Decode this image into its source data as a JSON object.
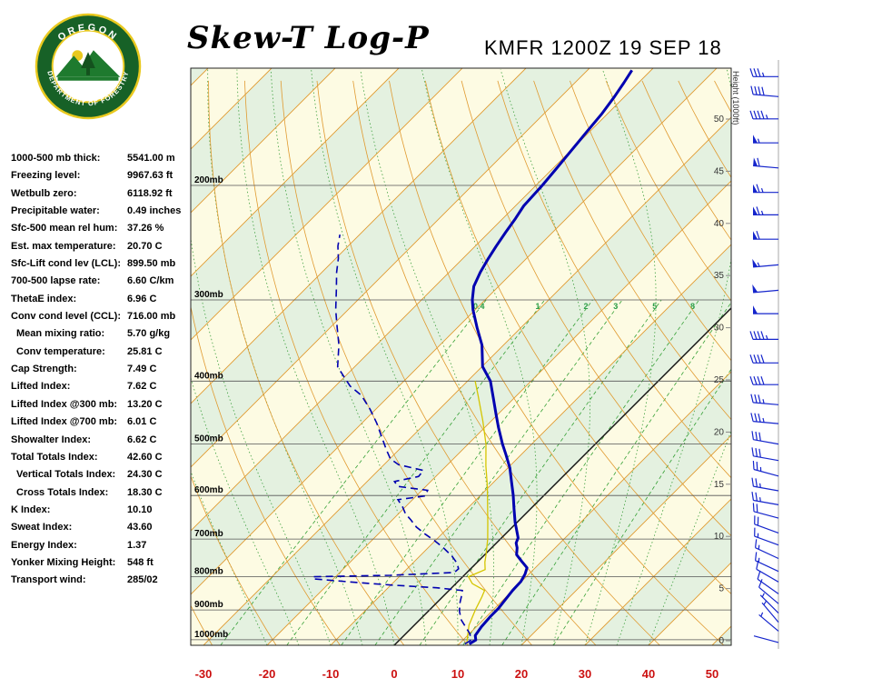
{
  "page": {
    "title": "Skew-T Log-P",
    "station": "KMFR 1200Z 19 SEP 18"
  },
  "logo": {
    "top_text": "OREGON",
    "bottom_text": "DEPARTMENT OF FORESTRY"
  },
  "indices": [
    {
      "label": "1000-500 mb thick:",
      "value": "5541.00 m",
      "indent": false
    },
    {
      "label": "Freezing level:",
      "value": "9967.63 ft",
      "indent": false
    },
    {
      "label": "Wetbulb zero:",
      "value": "6118.92 ft",
      "indent": false
    },
    {
      "label": "Precipitable water:",
      "value": "0.49 inches",
      "indent": false
    },
    {
      "label": "Sfc-500 mean rel hum:",
      "value": "37.26 %",
      "indent": false
    },
    {
      "label": "Est. max temperature:",
      "value": "20.70 C",
      "indent": false
    },
    {
      "label": "Sfc-Lift cond lev (LCL):",
      "value": "899.50 mb",
      "indent": false
    },
    {
      "label": "700-500 lapse rate:",
      "value": "6.60 C/km",
      "indent": false
    },
    {
      "label": "ThetaE index:",
      "value": "6.96 C",
      "indent": false
    },
    {
      "label": "Conv cond level (CCL):",
      "value": "716.00 mb",
      "indent": false
    },
    {
      "label": "Mean mixing ratio:",
      "value": "5.70 g/kg",
      "indent": true
    },
    {
      "label": "Conv temperature:",
      "value": "25.81 C",
      "indent": true
    },
    {
      "label": "Cap Strength:",
      "value": "7.49 C",
      "indent": false
    },
    {
      "label": "Lifted Index:",
      "value": "7.62 C",
      "indent": false
    },
    {
      "label": "Lifted Index @300 mb:",
      "value": "13.20 C",
      "indent": false
    },
    {
      "label": "Lifted Index @700 mb:",
      "value": "6.01 C",
      "indent": false
    },
    {
      "label": "Showalter Index:",
      "value": "6.62 C",
      "indent": false
    },
    {
      "label": "Total Totals Index:",
      "value": "42.60 C",
      "indent": false
    },
    {
      "label": "Vertical Totals Index:",
      "value": "24.30 C",
      "indent": true
    },
    {
      "label": "Cross Totals Index:",
      "value": "18.30 C",
      "indent": true
    },
    {
      "label": "K Index:",
      "value": "10.10",
      "indent": false
    },
    {
      "label": "Sweat Index:",
      "value": "43.60",
      "indent": false
    },
    {
      "label": "Energy Index:",
      "value": "1.37",
      "indent": false
    },
    {
      "label": "Yonker Mixing Height:",
      "value": "548 ft",
      "indent": false
    },
    {
      "label": "Transport wind:",
      "value": "285/02",
      "indent": false
    }
  ],
  "chart_data": {
    "type": "line",
    "title": "Skew-T Log-P",
    "station": "KMFR 1200Z 19 SEP 18",
    "x_axis": {
      "label": "Temperature (C)",
      "ticks": [
        -30,
        -20,
        -10,
        0,
        10,
        20,
        30,
        40,
        50
      ]
    },
    "pressure_levels": [
      200,
      300,
      400,
      500,
      600,
      700,
      800,
      900,
      1000
    ],
    "pressure_label_suffix": "mb",
    "height_axis": {
      "title": "Height (1000ft)",
      "labels": [
        "0",
        "5",
        "10",
        "15",
        "20",
        "25",
        "30",
        "35",
        "40",
        "45",
        "50"
      ]
    },
    "isotherm_range": [
      -130,
      50
    ],
    "isotherm_step": 10,
    "dry_adiabats_thetaC": [
      -40,
      -30,
      -20,
      -10,
      0,
      10,
      20,
      30,
      40,
      50,
      60,
      70,
      80,
      90,
      100,
      110,
      120,
      130,
      140,
      150,
      160,
      170,
      180
    ],
    "moist_adiabat_starts": [
      -20,
      -15,
      -10,
      -5,
      0,
      5,
      10,
      15,
      20,
      25,
      30,
      35,
      40
    ],
    "mixing_ratio_lines": [
      0.4,
      1,
      2,
      3,
      5,
      8,
      12,
      20
    ],
    "mixing_ratio_labels": [
      "0.4",
      "1",
      "2",
      "3",
      "5",
      "8"
    ],
    "temperature_profile": [
      [
        1015,
        11.6
      ],
      [
        1001,
        12.0
      ],
      [
        985,
        11.2
      ],
      [
        955,
        10.8
      ],
      [
        920,
        10.6
      ],
      [
        896,
        10.6
      ],
      [
        868,
        10.3
      ],
      [
        840,
        10.0
      ],
      [
        814,
        9.9
      ],
      [
        793,
        9.4
      ],
      [
        775,
        8.7
      ],
      [
        758,
        6.9
      ],
      [
        740,
        5.0
      ],
      [
        722,
        4.0
      ],
      [
        710,
        3.1
      ],
      [
        697,
        2.6
      ],
      [
        675,
        0.9
      ],
      [
        660,
        -0.3
      ],
      [
        629,
        -2.6
      ],
      [
        599,
        -4.9
      ],
      [
        571,
        -7.3
      ],
      [
        544,
        -9.7
      ],
      [
        519,
        -12.4
      ],
      [
        500,
        -14.6
      ],
      [
        471,
        -17.9
      ],
      [
        449,
        -20.4
      ],
      [
        427,
        -23.0
      ],
      [
        400,
        -26.4
      ],
      [
        380,
        -29.9
      ],
      [
        352,
        -33.4
      ],
      [
        331,
        -36.9
      ],
      [
        311,
        -40.3
      ],
      [
        300,
        -42.0
      ],
      [
        286,
        -43.9
      ],
      [
        272,
        -45.1
      ],
      [
        259,
        -46.0
      ],
      [
        248,
        -46.7
      ],
      [
        236,
        -47.4
      ],
      [
        225,
        -48.0
      ],
      [
        215,
        -48.7
      ],
      [
        200,
        -49.0
      ],
      [
        189,
        -49.4
      ],
      [
        177,
        -49.9
      ],
      [
        166,
        -50.4
      ],
      [
        155,
        -50.9
      ],
      [
        146,
        -51.6
      ],
      [
        139,
        -52.3
      ],
      [
        133,
        -53.0
      ]
    ],
    "dewpoint_profile": [
      [
        1015,
        10.9
      ],
      [
        1001,
        11.3
      ],
      [
        978,
        10.0
      ],
      [
        955,
        8.3
      ],
      [
        933,
        6.6
      ],
      [
        904,
        4.9
      ],
      [
        876,
        3.6
      ],
      [
        853,
        2.7
      ],
      [
        840,
        2.1
      ],
      [
        832,
        -2.4
      ],
      [
        824,
        -10.0
      ],
      [
        816,
        -16.1
      ],
      [
        806,
        -23.2
      ],
      [
        800,
        -23.5
      ],
      [
        796,
        -11.6
      ],
      [
        788,
        -2.0
      ],
      [
        778,
        -1.9
      ],
      [
        763,
        -3.0
      ],
      [
        744,
        -4.9
      ],
      [
        722,
        -7.6
      ],
      [
        704,
        -10.1
      ],
      [
        688,
        -12.6
      ],
      [
        671,
        -15.1
      ],
      [
        654,
        -17.1
      ],
      [
        640,
        -18.9
      ],
      [
        625,
        -20.4
      ],
      [
        609,
        -22.3
      ],
      [
        601,
        -18.6
      ],
      [
        589,
        -19.1
      ],
      [
        581,
        -24.4
      ],
      [
        571,
        -25.7
      ],
      [
        561,
        -22.7
      ],
      [
        549,
        -22.9
      ],
      [
        538,
        -27.7
      ],
      [
        527,
        -29.9
      ],
      [
        510,
        -32.0
      ],
      [
        486,
        -34.9
      ],
      [
        464,
        -37.7
      ],
      [
        442,
        -40.9
      ],
      [
        421,
        -44.4
      ],
      [
        407,
        -47.7
      ],
      [
        394,
        -50.1
      ],
      [
        380,
        -52.7
      ],
      [
        352,
        -55.9
      ],
      [
        331,
        -58.9
      ],
      [
        311,
        -61.9
      ],
      [
        290,
        -64.9
      ],
      [
        272,
        -67.7
      ],
      [
        259,
        -69.6
      ],
      [
        248,
        -71.6
      ],
      [
        238,
        -73.1
      ]
    ],
    "wetbulb_profile": [
      [
        1015,
        11.2
      ],
      [
        990,
        10.2
      ],
      [
        950,
        8.6
      ],
      [
        900,
        7.2
      ],
      [
        860,
        6.2
      ],
      [
        840,
        5.6
      ],
      [
        820,
        2.6
      ],
      [
        800,
        0.9
      ],
      [
        780,
        2.4
      ],
      [
        760,
        1.2
      ],
      [
        740,
        0.2
      ],
      [
        700,
        -2.0
      ],
      [
        660,
        -4.6
      ],
      [
        620,
        -7.4
      ],
      [
        580,
        -10.4
      ],
      [
        540,
        -13.8
      ],
      [
        500,
        -17.2
      ],
      [
        460,
        -21.4
      ],
      [
        420,
        -26.2
      ],
      [
        400,
        -28.8
      ]
    ],
    "wind_levels": [
      [
        1010,
        285,
        2
      ],
      [
        970,
        310,
        5
      ],
      [
        940,
        320,
        5
      ],
      [
        910,
        315,
        5
      ],
      [
        880,
        310,
        10
      ],
      [
        850,
        305,
        10
      ],
      [
        815,
        300,
        10
      ],
      [
        785,
        295,
        15
      ],
      [
        750,
        295,
        15
      ],
      [
        715,
        290,
        15
      ],
      [
        685,
        290,
        20
      ],
      [
        650,
        285,
        20
      ],
      [
        620,
        280,
        25
      ],
      [
        590,
        280,
        25
      ],
      [
        560,
        285,
        25
      ],
      [
        530,
        280,
        30
      ],
      [
        500,
        280,
        30
      ],
      [
        465,
        275,
        35
      ],
      [
        435,
        275,
        35
      ],
      [
        405,
        270,
        40
      ],
      [
        375,
        270,
        40
      ],
      [
        345,
        270,
        45
      ],
      [
        315,
        270,
        50
      ],
      [
        290,
        265,
        50
      ],
      [
        265,
        265,
        55
      ],
      [
        242,
        270,
        60
      ],
      [
        222,
        270,
        65
      ],
      [
        205,
        270,
        65
      ],
      [
        188,
        275,
        60
      ],
      [
        172,
        270,
        55
      ],
      [
        158,
        270,
        45
      ],
      [
        146,
        275,
        40
      ],
      [
        136,
        270,
        35
      ]
    ],
    "colors": {
      "band_yellow": "#FDFBE3",
      "band_green": "#E4F1E0",
      "isotherm": "#E09A30",
      "dry_adiabat": "#E09A30",
      "moist_adiabat": "#3FA03F",
      "mixing_ratio": "#35A035",
      "mixing_label": "#2FA04A",
      "pressure_line": "#555555",
      "freezing_line": "#111111",
      "sounding": "#0000B0",
      "wetbulb": "#D4C500",
      "barb": "#1525CC",
      "axis_red": "#CC1111",
      "height_label": "#333333"
    }
  }
}
